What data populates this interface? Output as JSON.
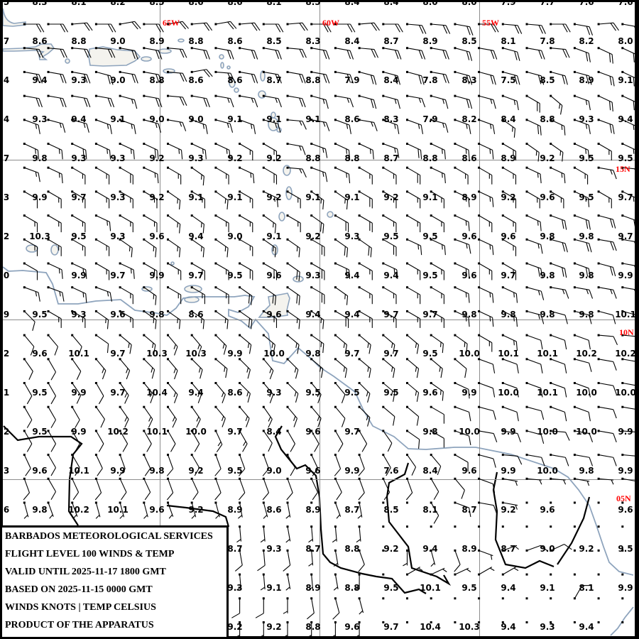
{
  "info_box": {
    "lines": [
      "BARBADOS METEOROLOGICAL SERVICES",
      "FLIGHT LEVEL 100 WINDS & TEMP",
      "VALID UNTIL 2025-11-17 1800 GMT",
      "BASED ON 2025-11-15 0000 GMT",
      "WINDS KNOTS | TEMP CELSIUS",
      "PRODUCT OF THE APPARATUS"
    ]
  },
  "grid_labels": {
    "longitudes": [
      "65W",
      "60W",
      "55W"
    ],
    "latitudes": [
      "15N",
      "10N",
      "05N"
    ]
  },
  "colors": {
    "grid_label": "#ff0000",
    "coastline": "#8ea4bd",
    "border": "#000000",
    "gridline": "#8c8c8c"
  },
  "temps_edge": [
    "5",
    "7",
    "4",
    "4",
    "7",
    "3",
    "2",
    "0",
    "9",
    "2",
    "1",
    "2",
    "3",
    "6",
    "",
    "",
    ""
  ],
  "temps": [
    [
      "8.3",
      "8.1",
      "8.2",
      "8.5",
      "8.6",
      "8.6",
      "8.1",
      "8.5",
      "8.4",
      "8.4",
      "8.0",
      "8.0",
      "7.9",
      "7.7",
      "7.6",
      "7.6"
    ],
    [
      "8.6",
      "8.8",
      "9.0",
      "8.9",
      "8.8",
      "8.6",
      "8.5",
      "8.3",
      "8.4",
      "8.7",
      "8.9",
      "8.5",
      "8.1",
      "7.8",
      "8.2",
      "8.0"
    ],
    [
      "9.4",
      "9.3",
      "9.0",
      "8.8",
      "8.6",
      "8.6",
      "8.7",
      "8.8",
      "7.9",
      "8.4",
      "7.8",
      "8.3",
      "7.5",
      "8.5",
      "8.9",
      "9.1"
    ],
    [
      "9.3",
      "9.4",
      "9.1",
      "9.0",
      "9.0",
      "9.1",
      "9.1",
      "9.1",
      "8.6",
      "8.3",
      "7.9",
      "8.2",
      "8.4",
      "8.8",
      "9.3",
      "9.4"
    ],
    [
      "9.8",
      "9.3",
      "9.3",
      "9.2",
      "9.3",
      "9.2",
      "9.2",
      "8.8",
      "8.8",
      "8.7",
      "8.8",
      "8.6",
      "8.9",
      "9.2",
      "9.5",
      "9.5"
    ],
    [
      "9.9",
      "9.7",
      "9.3",
      "9.2",
      "9.1",
      "9.1",
      "9.2",
      "9.1",
      "9.1",
      "9.2",
      "9.1",
      "8.9",
      "9.2",
      "9.6",
      "9.5",
      "9.7"
    ],
    [
      "10.3",
      "9.5",
      "9.3",
      "9.6",
      "9.4",
      "9.0",
      "9.1",
      "9.2",
      "9.3",
      "9.5",
      "9.5",
      "9.6",
      "9.6",
      "9.8",
      "9.8",
      "9.7"
    ],
    [
      "",
      "9.9",
      "9.7",
      "9.9",
      "9.7",
      "9.5",
      "9.6",
      "9.3",
      "9.4",
      "9.4",
      "9.5",
      "9.6",
      "9.7",
      "9.8",
      "9.8",
      "9.9"
    ],
    [
      "9.5",
      "9.3",
      "9.6",
      "9.8",
      "8.6",
      "",
      "9.6",
      "9.4",
      "9.4",
      "9.7",
      "9.7",
      "9.8",
      "9.8",
      "9.8",
      "9.8",
      "10.1"
    ],
    [
      "9.6",
      "10.1",
      "9.7",
      "10.3",
      "10.3",
      "9.9",
      "10.0",
      "9.8",
      "9.7",
      "9.7",
      "9.5",
      "10.0",
      "10.1",
      "10.1",
      "10.2",
      "10.2"
    ],
    [
      "9.5",
      "9.9",
      "9.7",
      "10.4",
      "9.4",
      "8.6",
      "9.3",
      "9.5",
      "9.5",
      "9.5",
      "9.6",
      "9.9",
      "10.0",
      "10.1",
      "10.0",
      "10.0"
    ],
    [
      "9.5",
      "9.9",
      "10.2",
      "10.1",
      "10.0",
      "9.7",
      "8.4",
      "9.6",
      "9.7",
      "",
      "9.8",
      "10.0",
      "9.9",
      "10.0",
      "10.0",
      "9.9"
    ],
    [
      "9.6",
      "10.1",
      "9.9",
      "9.8",
      "9.2",
      "9.5",
      "9.0",
      "9.6",
      "9.9",
      "7.6",
      "8.4",
      "9.6",
      "9.9",
      "10.0",
      "9.8",
      "9.9"
    ],
    [
      "9.8",
      "10.2",
      "10.1",
      "9.6",
      "9.2",
      "8.9",
      "8.6",
      "8.9",
      "8.7",
      "8.5",
      "8.1",
      "8.7",
      "9.2",
      "9.6",
      "",
      "9.6"
    ],
    [
      "",
      "",
      "",
      "",
      "",
      "8.7",
      "9.3",
      "8.7",
      "8.8",
      "9.2",
      "9.4",
      "8.9",
      "8.7",
      "9.0",
      "9.2",
      "9.5"
    ],
    [
      "",
      "",
      "",
      "",
      "",
      "9.3",
      "9.1",
      "8.9",
      "8.8",
      "9.5",
      "10.1",
      "9.5",
      "9.4",
      "9.1",
      "8.1",
      "9.9"
    ],
    [
      "",
      "",
      "",
      "",
      "",
      "9.2",
      "9.2",
      "8.8",
      "9.6",
      "9.7",
      "10.4",
      "10.3",
      "9.4",
      "9.3",
      "9.4",
      ""
    ]
  ],
  "winds": [
    "090/20 090/20 085/20 090/20 080/20 090/20 080/20 085/20 080/20 085/20 090/20 085/20 090/20 090/20 085/20 090/20 095/20 095/20 100/20 090/20 095/20 095/20 090/20 100/20 085/20 100/20",
    "095/20 095/20 095/20 095/20 100/20 100/20 095/20 100/20 100/20 100/20 100/20 095/20 100/20 100/20 095/20 100/20 100/20 100/20 105/20 100/20 105/20 100/20 095/20 110/20 115/20 115/20",
    "100/20 100/20 100/20 105/20 100/20 100/20 095/20 080/20 095/20 100/20 100/20 100/20 100/20 100/20 105/20 105/20 105/20 100/20 105/20 105/20 105/20 105/20 105/20 105/20 110/20 115/20",
    "100/20 100/20 100/20 100/20 105/15 100/20 095/20 100/20 100/15 100/15 100/15 100/20 105/15 100/15 105/20 105/15 100/15 105/15 105/20 105/15 110/15 120/20 130/15 110/15 115/20 115/20",
    "110/15 105/15 105/15 110/15 110/15 105/15 100/15 110/15 105/15 110/15 105/15 095/15 100/15 110/15 100/15 110/15 110/15 105/15 110/15 110/15 125/15 115/20 115/15 110/15 110/20 115/15",
    "115/15 115/15 115/20 115/15 115/15 115/20 115/15 115/15 115/15 120/15 120/15 100/15 110/15 115/15 115/15 110/15 115/20 115/15 115/15 115/15 120/15 125/15 125/15 115/15 120/15 115/15",
    "110/15 115/15 120/15 120/15 120/20 115/15 120/15 125/15 120/15 115/15 120/20 095/15 110/15 115/15 120/15 120/15 120/20 115/15 120/15 120/15 120/15 115/15 115/15 120/15 100/15 095/15",
    "120/10 120/15 120/15 120/15 120/15 120/15 125/15 120/15 125/15 120/15 115/15 120/15 125/15 125/15 120/20 120/15 120/15 120/15 115/15 115/15 120/15 120/15 120/15 115/15 120/15 115/15",
    "120/15 120/15 120/15 115/15 120/15 120/15 125/15 125/15 120/15 120/15 125/15 120/15 125/20 120/20 120/20 120/15 120/15 120/15 115/15 120/15 120/15 115/15 110/20 110/20 105/20 110/20",
    "120/15 120/15 120/15 120/15 125/15 125/15 125/15 125/15 125/15 120/15 125/15 125/15 120/20 125/20 125/20 120/20 115/15 115/15 110/15 115/15 120/15 110/15 105/20 105/20 100/20 100/20",
    "120/10 115/15 115/15 120/15 115/15 120/15 120/15 120/15 120/15 120/20 120/20 125/20 120/20 115/20 120/15 115/15 120/15 120/15 115/15 120/15 120/15 110/20 110/20 110/20 105/20 100/20",
    "110/15 110/15 115/15 110/15 120/15 125/15 120/15 120/15 120/15 125/20 125/20 125/20 120/20 125/15 120/15 120/15 120/15 120/15 115/15 115/15 115/15 105/15 100/15 100/15 100/15 100/15",
    "135/10 120/15 120/15 125/15 120/15 125/15 125/15 125/15 125/15 125/20 120/15 125/15 125/15 120/20 120/15 120/15 120/15 120/15 115/15 115/15 115/15 105/15 105/10 105/10 105/10 105/10",
    "140/10 140/10 140/10 125/10 130/15 130/15 140/15 140/15 135/15 130/15 130/15 130/15 125/15 130/15 130/15 130/15 130/15 125/15 125/15 120/15 115/15 110/10 110/10 110/10 095/10 095/10",
    "145/10 150/10 145/10 140/15 140/15 135/15 140/15 135/15 130/15 135/15 140/15 135/15 130/15 130/15 130/15 130/15 130/15 130/15 130/10 110/10 110/10 110/10 110/10 105/10 100/10 100/10",
    "150/10 150/10 145/10 150/10 145/15 140/15 140/15 140/15 140/15 135/15 140/15 135/15 140/15 140/10 135/15 130/15 130/15 125/15 115/10 110/10 110/10 110/10 110/10 110/10 100/10 100/10",
    "150/10 150/10 150/10 145/10 145/15 145/15 145/15 145/15 140/15 140/15 145/15 140/15 140/15 140/10 135/15 130/10 130/10 120/10 110/10 105/10 110/10 105/10 110/10 110/10 100/10 100/10",
    "150/10 150/10 150/10 150/10 150/10 150/10 150/10 150/10 155/15 150/15 145/10 150/10 150/10 150/10 150/10 145/10 125/10 120/10 110/10 100/10 100/10 105/10 095/10 100/10 100/10 095/10",
    "155/10 150/10 150/10 155/10 160/10 155/10 160/10 150/10 160/10 160/10 160/10 150/10 155/10 160/10 160/10 150/10 145/10 140/10 120/10 105/10 095/10 100/10 100/10 100/10 100/10 095/10",
    "160/10 150/10 155/10 160/10 155/10 155/10 160/10 155/10 160/10 160/10 160/10 160/10 155/10 155/10 160/10 155/10 160/10 150/10 140/10 110/10 100/05 095/05 095/05 100/05 095/05 100/05",
    "165/05 160/05 160/05 165/05 165/05 165/05 160/05 165/05 165/05 170/05 165/05 170/05 000/00 160/05 170/05 000/00 000/00 150/10 110/10 100/10 100/05 000/00 000/00 000/00 000/00 000/00",
    "170/05 170/05 170/05 175/05 170/05 170/05 170/05 170/05 175/05 175/05 175/05 170/05 175/05 175/05 175/05 000/00 000/00 000/00 000/00 000/00 000/00 000/00 000/00 000/00 000/00 000/00",
    "175/10 175/10 175/10 175/10 175/10 170/10 175/10 170/10 175/10 170/10 175/10 170/10 175/05 170/05 160/10 000/00 180/05 165/05 160/10 110/05 070/05 070/10 065/10 000/00 000/00 000/00",
    "175/05 175/05 175/05 175/05 175/05 175/05 175/05 175/05 175/05 175/05 175/05 170/05 175/05 170/05 180/05 000/00 060/05 065/05 065/05 060/05 060/05 000/00 000/00 000/00 000/00 000/00",
    "180/10 180/10 180/10 180/10 180/10 180/05 180/10 180/05 180/10 180/10 180/10 180/05 170/10 165/10 165/05 000/00 000/00 000/00 000/00 000/00 000/00 000/00 000/00 030/10 000/00 000/00",
    "180/05 180/05 180/05 180/05 180/05 180/05 180/05 180/05 180/05 180/05 180/05 180/05 180/05 180/05 180/05 000/00 000/00 000/00 000/00 000/00 000/00 000/00 000/00 000/00 000/00 000/00"
  ]
}
